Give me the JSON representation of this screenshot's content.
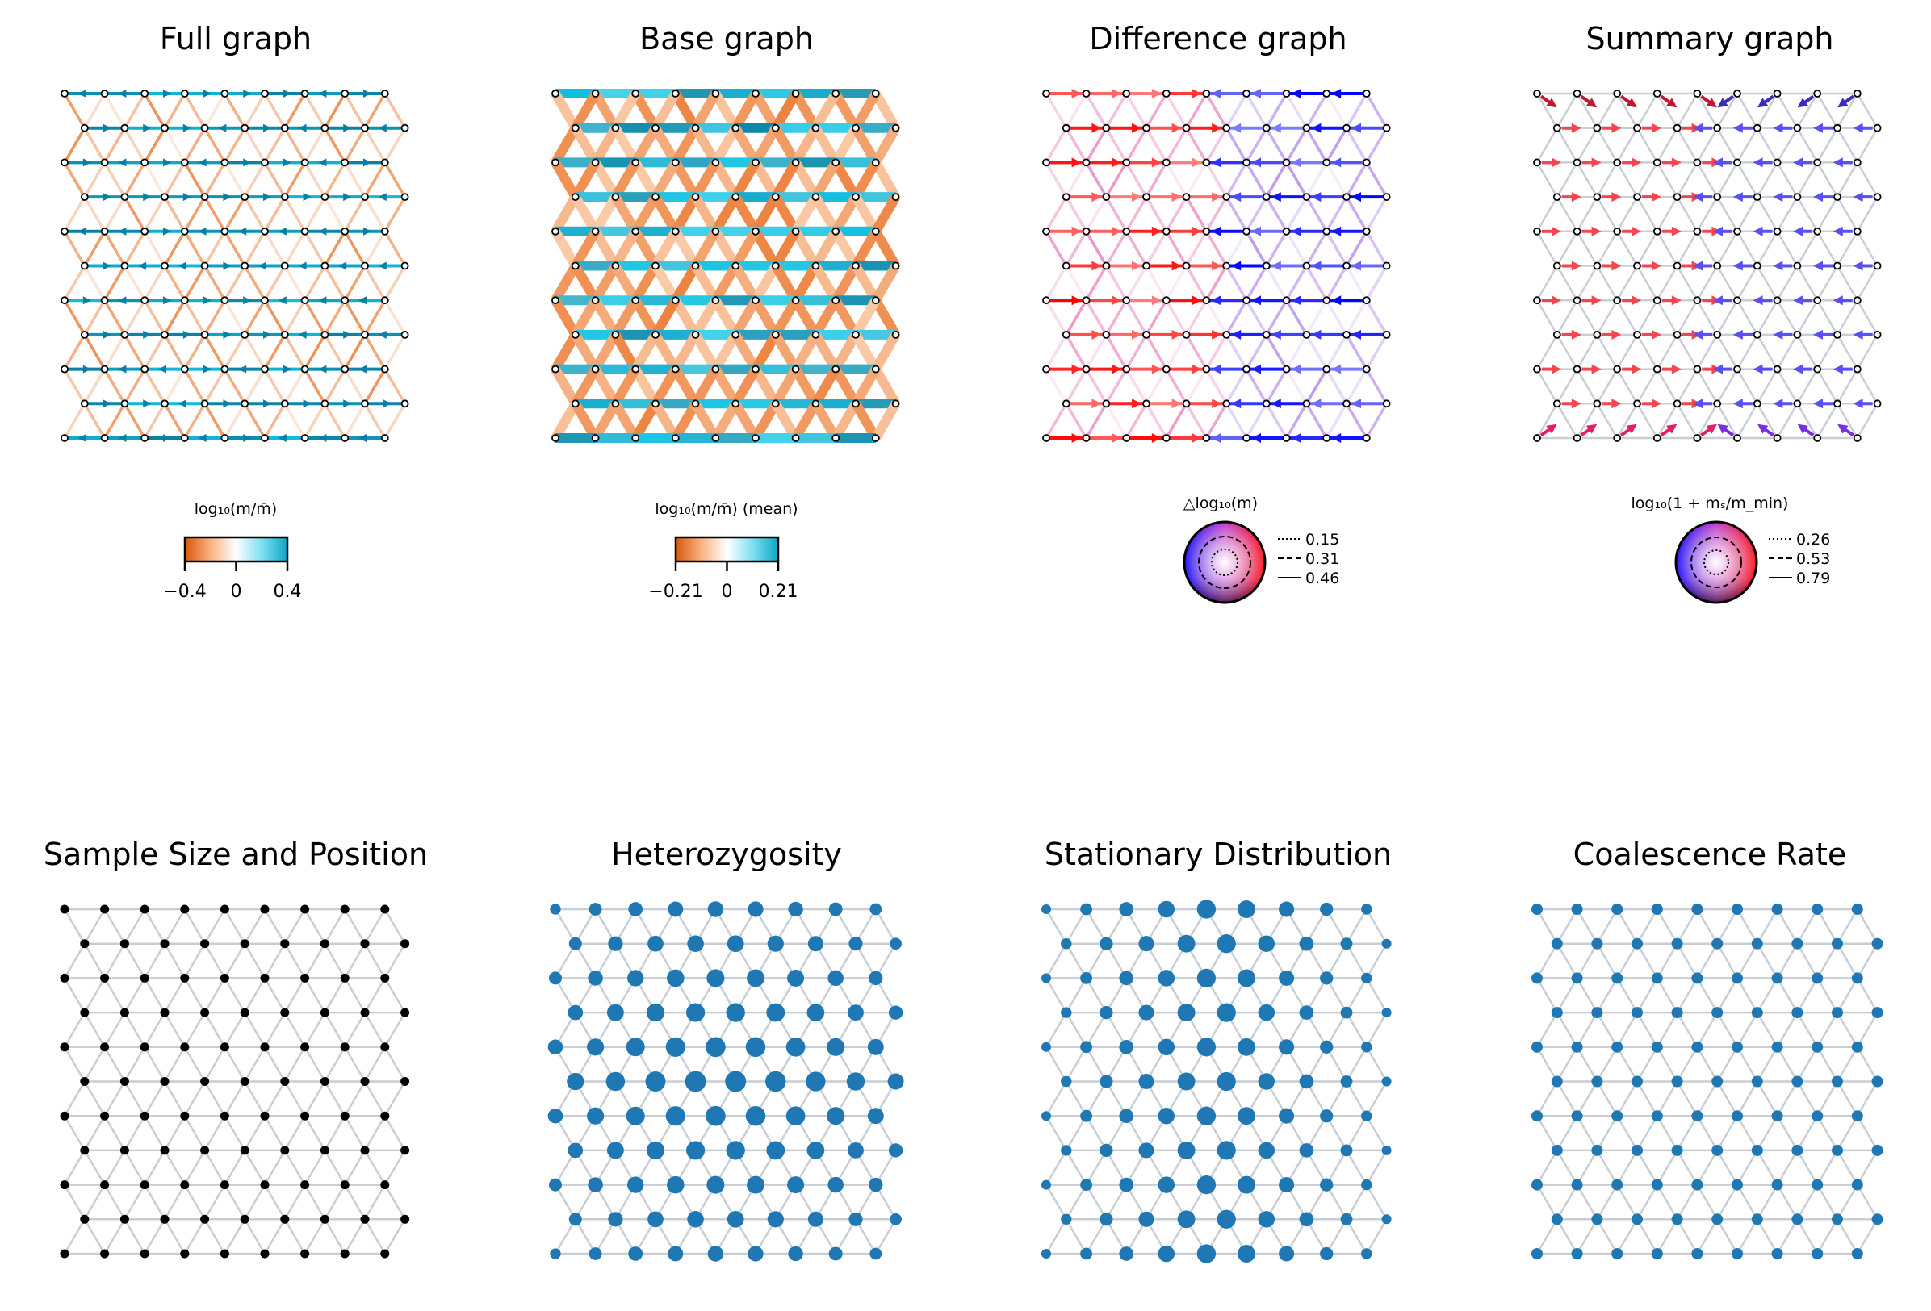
{
  "figure": {
    "panel_titles": [
      "Full graph",
      "Base graph",
      "Difference graph",
      "Summary graph",
      "Sample Size and Position",
      "Heterozygosity",
      "Stationary Distribution",
      "Coalescence Rate"
    ],
    "colors": {
      "positive": "#11bcdc",
      "negative": "#e86a1c",
      "east": "#ff0000",
      "west": "#0000ff",
      "node_blue": "#1f77b4",
      "node_black": "#000000",
      "edge_grey": "#c9ced4"
    }
  },
  "chart_data": [
    {
      "type": "network",
      "title": "Full graph",
      "grid": {
        "rows": 11,
        "cols": 9,
        "layout": "triangular lattice, odd rows shifted right"
      },
      "edge_encoding": "directed edges colored by log10(m / m-bar)",
      "colorbar": {
        "label": "log₁₀(m/m̄)",
        "range": [
          -0.4,
          0.4
        ],
        "ticks": [
          "−0.4",
          "0",
          "0.4"
        ]
      }
    },
    {
      "type": "network",
      "title": "Base graph",
      "grid": {
        "rows": 11,
        "cols": 9
      },
      "edge_encoding": "undirected edges colored by mean log10(m / m-bar)",
      "colorbar": {
        "label": "log₁₀(m/m̄) (mean)",
        "range": [
          -0.21,
          0.21
        ],
        "ticks": [
          "−0.21",
          "0",
          "0.21"
        ]
      }
    },
    {
      "type": "network",
      "title": "Difference graph",
      "grid": {
        "rows": 11,
        "cols": 9
      },
      "edge_encoding": "directed arrows, color by direction, opacity by Δlog10(m); western half points east, eastern half points west",
      "legend": {
        "title": "△log₁₀(m)",
        "entries": [
          {
            "style": "dotted",
            "value": "0.15"
          },
          {
            "style": "dashed",
            "value": "0.31"
          },
          {
            "style": "solid",
            "value": "0.46"
          }
        ]
      }
    },
    {
      "type": "network",
      "title": "Summary graph",
      "grid": {
        "rows": 11,
        "cols": 9
      },
      "edge_encoding": "one arrow per node, color wheel by direction",
      "legend": {
        "title": "log₁₀(1 + mₛ/m_min)",
        "entries": [
          {
            "style": "dotted",
            "value": "0.26"
          },
          {
            "style": "dashed",
            "value": "0.53"
          },
          {
            "style": "solid",
            "value": "0.79"
          }
        ]
      }
    },
    {
      "type": "scatter",
      "title": "Sample Size and Position",
      "grid": {
        "rows": 11,
        "cols": 9
      },
      "node_size": "uniform",
      "node_color": "#000000"
    },
    {
      "type": "scatter",
      "title": "Heterozygosity",
      "grid": {
        "rows": 11,
        "cols": 9
      },
      "node_size": "larger toward the center of the lattice, smallest at the corners",
      "node_color": "#1f77b4"
    },
    {
      "type": "scatter",
      "title": "Stationary Distribution",
      "grid": {
        "rows": 11,
        "cols": 9
      },
      "node_size": "largest along the central column, decreasing toward the sides",
      "node_color": "#1f77b4"
    },
    {
      "type": "scatter",
      "title": "Coalescence Rate",
      "grid": {
        "rows": 11,
        "cols": 9
      },
      "node_size": "uniform",
      "node_color": "#1f77b4"
    }
  ]
}
